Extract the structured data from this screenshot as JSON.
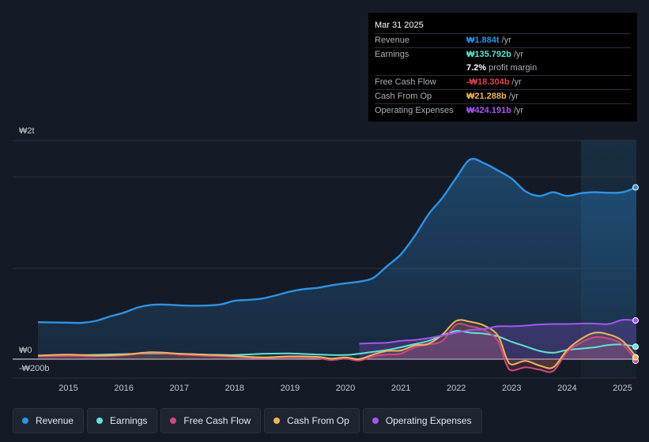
{
  "tooltip": {
    "date": "Mar 31 2025",
    "rows": [
      {
        "label": "Revenue",
        "value": "₩1.884t",
        "unit": "/yr",
        "color": "#2e93e4"
      },
      {
        "label": "Earnings",
        "value": "₩135.792b",
        "unit": "/yr",
        "color": "#5fe3d5"
      },
      {
        "label": "",
        "value": "7.2%",
        "unit": "profit margin",
        "color": "#ffffff"
      },
      {
        "label": "Free Cash Flow",
        "value": "-₩18.304b",
        "unit": "/yr",
        "color": "#e0404c"
      },
      {
        "label": "Cash From Op",
        "value": "₩21.288b",
        "unit": "/yr",
        "color": "#f0b45e"
      },
      {
        "label": "Operating Expenses",
        "value": "₩424.191b",
        "unit": "/yr",
        "color": "#a855f0"
      }
    ]
  },
  "legend": [
    {
      "label": "Revenue",
      "color": "#2e93e4"
    },
    {
      "label": "Earnings",
      "color": "#5fe3d5"
    },
    {
      "label": "Free Cash Flow",
      "color": "#d1497a"
    },
    {
      "label": "Cash From Op",
      "color": "#f0b45e"
    },
    {
      "label": "Operating Expenses",
      "color": "#a855f0"
    }
  ],
  "chart_data": {
    "type": "line",
    "title": "",
    "xlabel": "",
    "ylabel": "",
    "y_unit": "KRW billions",
    "y_axis_labels": {
      "top": "₩2t",
      "zero": "₩0",
      "bottom": "-₩200b"
    },
    "ylim": [
      -200,
      2400
    ],
    "xlim": [
      2014.45,
      2025.25
    ],
    "x_ticks": [
      "2015",
      "2016",
      "2017",
      "2018",
      "2019",
      "2020",
      "2021",
      "2022",
      "2023",
      "2024",
      "2025"
    ],
    "highlight_from": 2024.25,
    "series": [
      {
        "name": "Revenue",
        "color": "#2e93e4",
        "fill": true,
        "points": [
          [
            2014.45,
            405
          ],
          [
            2015.0,
            400
          ],
          [
            2015.25,
            398
          ],
          [
            2015.5,
            420
          ],
          [
            2015.75,
            468
          ],
          [
            2016.0,
            510
          ],
          [
            2016.25,
            566
          ],
          [
            2016.5,
            595
          ],
          [
            2016.75,
            598
          ],
          [
            2017.0,
            590
          ],
          [
            2017.25,
            586
          ],
          [
            2017.5,
            588
          ],
          [
            2017.75,
            600
          ],
          [
            2018.0,
            640
          ],
          [
            2018.25,
            650
          ],
          [
            2018.5,
            665
          ],
          [
            2018.75,
            700
          ],
          [
            2019.0,
            740
          ],
          [
            2019.25,
            768
          ],
          [
            2019.5,
            782
          ],
          [
            2019.75,
            810
          ],
          [
            2020.0,
            832
          ],
          [
            2020.25,
            850
          ],
          [
            2020.5,
            890
          ],
          [
            2020.75,
            1020
          ],
          [
            2021.0,
            1150
          ],
          [
            2021.25,
            1350
          ],
          [
            2021.5,
            1590
          ],
          [
            2021.75,
            1770
          ],
          [
            2022.0,
            1990
          ],
          [
            2022.25,
            2190
          ],
          [
            2022.5,
            2150
          ],
          [
            2022.75,
            2070
          ],
          [
            2023.0,
            1980
          ],
          [
            2023.25,
            1840
          ],
          [
            2023.5,
            1790
          ],
          [
            2023.75,
            1830
          ],
          [
            2024.0,
            1790
          ],
          [
            2024.25,
            1820
          ],
          [
            2024.5,
            1830
          ],
          [
            2024.75,
            1825
          ],
          [
            2025.0,
            1830
          ],
          [
            2025.25,
            1884
          ]
        ]
      },
      {
        "name": "Earnings",
        "color": "#5fe3d5",
        "fill": false,
        "points": [
          [
            2014.45,
            35
          ],
          [
            2015.0,
            40
          ],
          [
            2015.5,
            48
          ],
          [
            2016.0,
            55
          ],
          [
            2016.5,
            62
          ],
          [
            2017.0,
            58
          ],
          [
            2017.5,
            50
          ],
          [
            2018.0,
            45
          ],
          [
            2018.5,
            58
          ],
          [
            2019.0,
            62
          ],
          [
            2019.5,
            50
          ],
          [
            2020.0,
            45
          ],
          [
            2020.25,
            60
          ],
          [
            2020.5,
            80
          ],
          [
            2020.75,
            100
          ],
          [
            2021.0,
            130
          ],
          [
            2021.25,
            165
          ],
          [
            2021.5,
            200
          ],
          [
            2021.75,
            260
          ],
          [
            2022.0,
            310
          ],
          [
            2022.25,
            290
          ],
          [
            2022.5,
            280
          ],
          [
            2022.75,
            250
          ],
          [
            2023.0,
            190
          ],
          [
            2023.25,
            140
          ],
          [
            2023.5,
            90
          ],
          [
            2023.75,
            70
          ],
          [
            2024.0,
            100
          ],
          [
            2024.25,
            115
          ],
          [
            2024.5,
            130
          ],
          [
            2024.75,
            155
          ],
          [
            2025.0,
            160
          ],
          [
            2025.25,
            136
          ]
        ]
      },
      {
        "name": "Free Cash Flow",
        "color": "#d1497a",
        "fill": true,
        "points": [
          [
            2014.45,
            30
          ],
          [
            2015.0,
            35
          ],
          [
            2015.5,
            30
          ],
          [
            2016.0,
            42
          ],
          [
            2016.5,
            70
          ],
          [
            2017.0,
            50
          ],
          [
            2017.5,
            35
          ],
          [
            2018.0,
            25
          ],
          [
            2018.5,
            10
          ],
          [
            2019.0,
            20
          ],
          [
            2019.5,
            10
          ],
          [
            2019.75,
            -10
          ],
          [
            2020.0,
            5
          ],
          [
            2020.25,
            -15
          ],
          [
            2020.5,
            30
          ],
          [
            2020.75,
            50
          ],
          [
            2021.0,
            60
          ],
          [
            2021.25,
            130
          ],
          [
            2021.5,
            160
          ],
          [
            2021.75,
            200
          ],
          [
            2022.0,
            380
          ],
          [
            2022.25,
            360
          ],
          [
            2022.5,
            320
          ],
          [
            2022.75,
            200
          ],
          [
            2022.9,
            -50
          ],
          [
            2023.0,
            -125
          ],
          [
            2023.25,
            -90
          ],
          [
            2023.5,
            -115
          ],
          [
            2023.75,
            -130
          ],
          [
            2024.0,
            80
          ],
          [
            2024.25,
            180
          ],
          [
            2024.5,
            240
          ],
          [
            2024.75,
            225
          ],
          [
            2025.0,
            160
          ],
          [
            2025.25,
            -18
          ]
        ]
      },
      {
        "name": "Cash From Op",
        "color": "#f0b45e",
        "fill": true,
        "points": [
          [
            2014.45,
            40
          ],
          [
            2015.0,
            50
          ],
          [
            2015.5,
            40
          ],
          [
            2016.0,
            50
          ],
          [
            2016.5,
            75
          ],
          [
            2017.0,
            60
          ],
          [
            2017.5,
            48
          ],
          [
            2018.0,
            35
          ],
          [
            2018.5,
            20
          ],
          [
            2019.0,
            30
          ],
          [
            2019.5,
            25
          ],
          [
            2019.75,
            5
          ],
          [
            2020.0,
            20
          ],
          [
            2020.25,
            0
          ],
          [
            2020.5,
            50
          ],
          [
            2020.75,
            90
          ],
          [
            2021.0,
            95
          ],
          [
            2021.25,
            150
          ],
          [
            2021.5,
            170
          ],
          [
            2021.75,
            270
          ],
          [
            2022.0,
            420
          ],
          [
            2022.25,
            410
          ],
          [
            2022.5,
            370
          ],
          [
            2022.75,
            260
          ],
          [
            2022.9,
            20
          ],
          [
            2023.0,
            -60
          ],
          [
            2023.25,
            -20
          ],
          [
            2023.5,
            -70
          ],
          [
            2023.75,
            -90
          ],
          [
            2024.0,
            100
          ],
          [
            2024.25,
            220
          ],
          [
            2024.5,
            290
          ],
          [
            2024.75,
            270
          ],
          [
            2025.0,
            200
          ],
          [
            2025.25,
            21
          ]
        ]
      },
      {
        "name": "Operating Expenses",
        "color": "#a855f0",
        "fill": true,
        "points": [
          [
            2020.25,
            170
          ],
          [
            2020.5,
            175
          ],
          [
            2020.75,
            180
          ],
          [
            2021.0,
            200
          ],
          [
            2021.25,
            210
          ],
          [
            2021.5,
            230
          ],
          [
            2021.75,
            260
          ],
          [
            2022.0,
            290
          ],
          [
            2022.25,
            320
          ],
          [
            2022.5,
            330
          ],
          [
            2022.75,
            360
          ],
          [
            2023.0,
            360
          ],
          [
            2023.25,
            368
          ],
          [
            2023.5,
            380
          ],
          [
            2023.75,
            385
          ],
          [
            2024.0,
            385
          ],
          [
            2024.25,
            390
          ],
          [
            2024.5,
            390
          ],
          [
            2024.75,
            385
          ],
          [
            2025.0,
            430
          ],
          [
            2025.25,
            424
          ]
        ]
      }
    ]
  }
}
